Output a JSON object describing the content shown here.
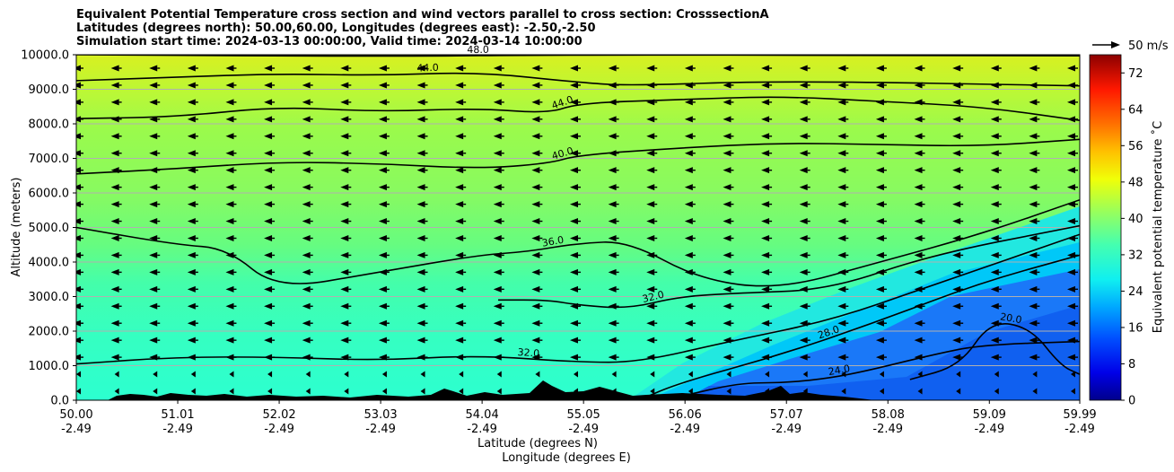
{
  "title": {
    "line1": "Equivalent Potential Temperature cross section and wind vectors parallel to cross section: CrosssectionA",
    "line2": "Latitudes (degrees north): 50.00,60.00, Longitudes (degrees east): -2.50,-2.50",
    "line3": "Simulation start time: 2024-03-13 00:00:00, Valid time: 2024-03-14 10:00:00"
  },
  "axes": {
    "ylabel": "Altitude (meters)",
    "xlabel_lat": "Latitude (degrees N)",
    "xlabel_lon": "Longitude (degrees E)"
  },
  "colorbar": {
    "label": "Equivalent potential temperature ˚C",
    "ticks": [
      "0",
      "8",
      "16",
      "24",
      "32",
      "40",
      "48",
      "56",
      "64",
      "72"
    ]
  },
  "quiver_key": {
    "label": "50 m/s"
  },
  "chart_data": {
    "type": "heatmap",
    "subtype": "vertical cross section with filled contours, contour lines and wind vectors",
    "x_ticks": [
      {
        "lat": "50.00",
        "lon": "-2.49"
      },
      {
        "lat": "51.01",
        "lon": "-2.49"
      },
      {
        "lat": "52.02",
        "lon": "-2.49"
      },
      {
        "lat": "53.03",
        "lon": "-2.49"
      },
      {
        "lat": "54.04",
        "lon": "-2.49"
      },
      {
        "lat": "55.05",
        "lon": "-2.49"
      },
      {
        "lat": "56.06",
        "lon": "-2.49"
      },
      {
        "lat": "57.07",
        "lon": "-2.49"
      },
      {
        "lat": "58.08",
        "lon": "-2.49"
      },
      {
        "lat": "59.09",
        "lon": "-2.49"
      },
      {
        "lat": "59.99",
        "lon": "-2.49"
      }
    ],
    "y_ticks": [
      "0.0",
      "1000.0",
      "2000.0",
      "3000.0",
      "4000.0",
      "5000.0",
      "6000.0",
      "7000.0",
      "8000.0",
      "9000.0",
      "10000.0"
    ],
    "xlim": [
      50.0,
      59.99
    ],
    "ylim": [
      0,
      10000
    ],
    "colorbar_range": [
      0,
      76
    ],
    "grid": "horizontal",
    "contour_lines": [
      {
        "level": 48,
        "label": "48.0",
        "points": [
          [
            50.0,
            10000
          ],
          [
            53.0,
            9950
          ],
          [
            55.0,
            10000
          ],
          [
            58.0,
            9980
          ],
          [
            59.99,
            9970
          ]
        ]
      },
      {
        "level": 44,
        "label": "44.0",
        "points": [
          [
            50.0,
            9250
          ],
          [
            51.0,
            9350
          ],
          [
            52.0,
            9450
          ],
          [
            53.0,
            9400
          ],
          [
            54.0,
            9500
          ],
          [
            55.0,
            9200
          ],
          [
            55.5,
            9100
          ],
          [
            57.0,
            9250
          ],
          [
            59.99,
            9100
          ]
        ]
      },
      {
        "level": 44,
        "label": "44.0",
        "points": [
          [
            50.0,
            8150
          ],
          [
            51.0,
            8200
          ],
          [
            52.0,
            8500
          ],
          [
            53.0,
            8350
          ],
          [
            54.0,
            8450
          ],
          [
            54.7,
            8300
          ],
          [
            55.0,
            8600
          ],
          [
            56.0,
            8700
          ],
          [
            57.0,
            8800
          ],
          [
            58.0,
            8650
          ],
          [
            59.0,
            8500
          ],
          [
            59.99,
            8100
          ]
        ]
      },
      {
        "level": 40,
        "label": "40.0",
        "points": [
          [
            50.0,
            6550
          ],
          [
            51.0,
            6700
          ],
          [
            52.0,
            6900
          ],
          [
            53.0,
            6850
          ],
          [
            54.0,
            6700
          ],
          [
            54.7,
            6850
          ],
          [
            55.0,
            7100
          ],
          [
            56.0,
            7300
          ],
          [
            57.0,
            7450
          ],
          [
            58.0,
            7400
          ],
          [
            59.0,
            7350
          ],
          [
            59.99,
            7550
          ]
        ]
      },
      {
        "level": 36,
        "label": "36.0",
        "points": [
          [
            50.0,
            5000
          ],
          [
            51.0,
            4500
          ],
          [
            51.5,
            4400
          ],
          [
            52.0,
            3200
          ],
          [
            53.0,
            3700
          ],
          [
            54.0,
            4200
          ],
          [
            54.5,
            4300
          ],
          [
            55.0,
            4550
          ],
          [
            55.5,
            4600
          ],
          [
            56.2,
            3500
          ],
          [
            57.0,
            3200
          ],
          [
            58.0,
            4000
          ],
          [
            59.0,
            4800
          ],
          [
            59.99,
            5800
          ]
        ]
      },
      {
        "level": 32,
        "label": "32.0",
        "points": [
          [
            54.2,
            2900
          ],
          [
            54.7,
            2900
          ],
          [
            55.0,
            2750
          ],
          [
            55.5,
            2650
          ],
          [
            56.0,
            3000
          ],
          [
            56.6,
            3100
          ],
          [
            57.5,
            3200
          ],
          [
            58.5,
            4200
          ],
          [
            59.99,
            5050
          ]
        ]
      },
      {
        "level": 32,
        "label": "32.0",
        "points": [
          [
            50.0,
            1050
          ],
          [
            51.0,
            1250
          ],
          [
            52.0,
            1250
          ],
          [
            53.0,
            1150
          ],
          [
            54.0,
            1300
          ],
          [
            55.0,
            1100
          ],
          [
            55.6,
            1100
          ],
          [
            56.5,
            1700
          ],
          [
            57.5,
            2300
          ],
          [
            58.5,
            3300
          ],
          [
            59.99,
            4800
          ]
        ]
      },
      {
        "level": 28,
        "label": "28.0",
        "points": [
          [
            55.6,
            0
          ],
          [
            56.0,
            500
          ],
          [
            57.0,
            1300
          ],
          [
            58.0,
            2300
          ],
          [
            59.0,
            3400
          ],
          [
            59.99,
            4200
          ]
        ]
      },
      {
        "level": 24,
        "label": "24.0",
        "points": [
          [
            56.0,
            100
          ],
          [
            56.6,
            500
          ],
          [
            57.0,
            500
          ],
          [
            57.4,
            600
          ],
          [
            57.8,
            800
          ],
          [
            58.5,
            1300
          ],
          [
            59.0,
            1600
          ],
          [
            59.99,
            1700
          ]
        ]
      },
      {
        "level": 20,
        "label": "20.0",
        "points": [
          [
            58.3,
            600
          ],
          [
            58.8,
            1000
          ],
          [
            59.1,
            2300
          ],
          [
            59.5,
            2100
          ],
          [
            59.8,
            1000
          ],
          [
            59.99,
            750
          ]
        ]
      }
    ],
    "wind_vectors": "parallel component predominantly southward (arrows pointing toward lower latitude), weak near surface",
    "terrain": "black filled orography near surface between 50.5 and 58.3 degrees N"
  }
}
